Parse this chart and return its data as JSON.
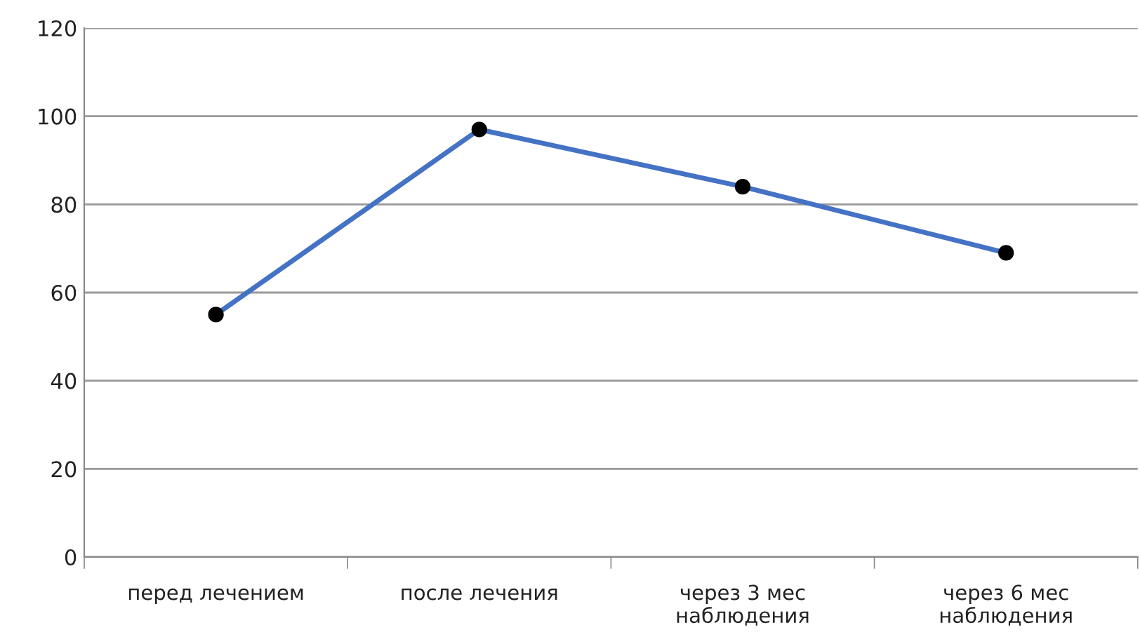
{
  "chart_data": {
    "type": "line",
    "categories": [
      "перед лечением",
      "после лечения",
      "через 3 мес\nнаблюдения",
      "через 6 мес\nнаблюдения"
    ],
    "series": [
      {
        "color": "#4472c4",
        "values": [
          55,
          97,
          84,
          69
        ]
      }
    ],
    "ylim": [
      0,
      120
    ],
    "yticks": [
      0,
      20,
      40,
      60,
      80,
      100,
      120
    ],
    "grid": "y",
    "marker": "circle",
    "line_style": "solid"
  }
}
